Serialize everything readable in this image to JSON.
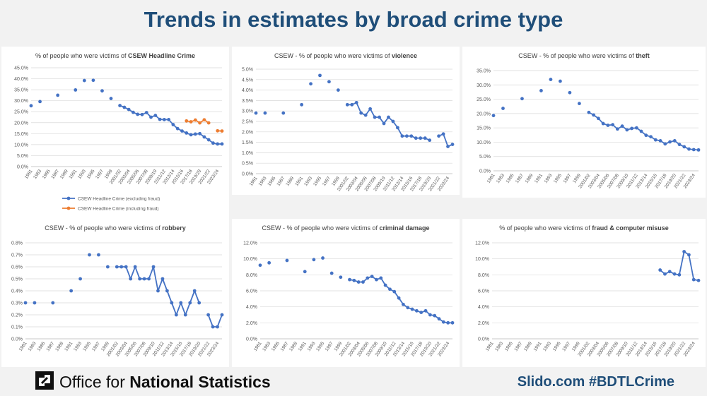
{
  "slide": {
    "title": "Trends in estimates by broad crime type"
  },
  "footer": {
    "org_light": "Office for ",
    "org_bold": "National Statistics",
    "slido": "Slido.com #BDTLCrime"
  },
  "colors": {
    "series_blue": "#4472c4",
    "series_orange": "#ed7d31",
    "title_blue": "#1f4e79",
    "grid": "#d9d9d9",
    "axis_text": "#595959"
  },
  "x_tick_labels": [
    "1981",
    "1983",
    "1985",
    "1987",
    "1989",
    "1991",
    "1993",
    "1995",
    "1997",
    "1999",
    "2001/02",
    "2003/04",
    "2005/06",
    "2007/08",
    "2009/10",
    "2011/12",
    "2013/14",
    "2015/16",
    "2017/18",
    "2019/20",
    "2021/22",
    "2023/24"
  ],
  "chart_data": [
    {
      "id": "headline",
      "type": "line",
      "title_prefix": "% of people who were victims of ",
      "title_bold": "CSEW Headline Crime",
      "ylim": [
        0,
        45
      ],
      "yticks": [
        "0.0%",
        "5.0%",
        "10.0%",
        "15.0%",
        "20.0%",
        "25.0%",
        "30.0%",
        "35.0%",
        "40.0%",
        "45.0%"
      ],
      "legend": [
        "CSEW Headline Crime (excluding fraud)",
        "CSEW Headline Crime (including fraud)"
      ],
      "series": [
        {
          "name": "CSEW Headline Crime (excluding fraud)",
          "color": "#4472c4",
          "points": [
            [
              1981,
              27.7
            ],
            [
              1983,
              29.6
            ],
            [
              1987,
              32.5
            ],
            [
              1991,
              34.9
            ],
            [
              1993,
              39.2
            ],
            [
              1995,
              39.3
            ],
            [
              1997,
              34.5
            ],
            [
              1999,
              31.0
            ],
            [
              2001,
              27.8
            ],
            [
              2002,
              27.0
            ],
            [
              2003,
              26.0
            ],
            [
              2004,
              24.7
            ],
            [
              2005,
              23.8
            ],
            [
              2006,
              23.7
            ],
            [
              2007,
              24.6
            ],
            [
              2008,
              22.5
            ],
            [
              2009,
              23.3
            ],
            [
              2010,
              21.5
            ],
            [
              2011,
              21.4
            ],
            [
              2012,
              21.4
            ],
            [
              2013,
              19.1
            ],
            [
              2014,
              17.3
            ],
            [
              2015,
              16.2
            ],
            [
              2016,
              15.3
            ],
            [
              2017,
              14.5
            ],
            [
              2018,
              14.8
            ],
            [
              2019,
              15.0
            ],
            [
              2020,
              13.5
            ],
            [
              2021,
              12.2
            ],
            [
              2022,
              10.7
            ],
            [
              2023,
              10.3
            ],
            [
              2024,
              10.3
            ]
          ]
        },
        {
          "name": "CSEW Headline Crime (including fraud)",
          "color": "#ed7d31",
          "points": [
            [
              2016,
              20.8
            ],
            [
              2017,
              20.4
            ],
            [
              2018,
              21.2
            ],
            [
              2019,
              19.9
            ],
            [
              2020,
              21.3
            ],
            [
              2021,
              19.9
            ],
            [
              2023,
              16.3
            ],
            [
              2024,
              16.2
            ]
          ]
        }
      ]
    },
    {
      "id": "violence",
      "type": "line",
      "title_prefix": "CSEW - % of people who were victims of ",
      "title_bold": "violence",
      "ylim": [
        0,
        5
      ],
      "yticks": [
        "0.0%",
        "0.5%",
        "1.0%",
        "1.5%",
        "2.0%",
        "2.5%",
        "3.0%",
        "3.5%",
        "4.0%",
        "4.5%",
        "5.0%"
      ],
      "series": [
        {
          "name": "violence",
          "color": "#4472c4",
          "points": [
            [
              1981,
              2.9
            ],
            [
              1983,
              2.9
            ],
            [
              1987,
              2.9
            ],
            [
              1991,
              3.3
            ],
            [
              1993,
              4.3
            ],
            [
              1995,
              4.7
            ],
            [
              1997,
              4.4
            ],
            [
              1999,
              4.0
            ],
            [
              2001,
              3.3
            ],
            [
              2002,
              3.3
            ],
            [
              2003,
              3.4
            ],
            [
              2004,
              2.9
            ],
            [
              2005,
              2.8
            ],
            [
              2006,
              3.1
            ],
            [
              2007,
              2.7
            ],
            [
              2008,
              2.7
            ],
            [
              2009,
              2.4
            ],
            [
              2010,
              2.7
            ],
            [
              2011,
              2.5
            ],
            [
              2012,
              2.2
            ],
            [
              2013,
              1.8
            ],
            [
              2014,
              1.8
            ],
            [
              2015,
              1.8
            ],
            [
              2016,
              1.7
            ],
            [
              2017,
              1.7
            ],
            [
              2018,
              1.7
            ],
            [
              2019,
              1.6
            ],
            [
              2021,
              1.8
            ],
            [
              2022,
              1.9
            ],
            [
              2023,
              1.3
            ],
            [
              2024,
              1.4
            ]
          ]
        }
      ]
    },
    {
      "id": "theft",
      "type": "line",
      "title_prefix": "CSEW - % of people who were victims of ",
      "title_bold": "theft",
      "ylim": [
        0,
        35
      ],
      "yticks": [
        "0.0%",
        "5.0%",
        "10.0%",
        "15.0%",
        "20.0%",
        "25.0%",
        "30.0%",
        "35.0%"
      ],
      "series": [
        {
          "name": "theft",
          "color": "#4472c4",
          "points": [
            [
              1981,
              19.3
            ],
            [
              1983,
              21.8
            ],
            [
              1987,
              25.2
            ],
            [
              1991,
              28.0
            ],
            [
              1993,
              31.9
            ],
            [
              1995,
              31.3
            ],
            [
              1997,
              27.3
            ],
            [
              1999,
              23.5
            ],
            [
              2001,
              20.4
            ],
            [
              2002,
              19.5
            ],
            [
              2003,
              18.3
            ],
            [
              2004,
              16.5
            ],
            [
              2005,
              15.9
            ],
            [
              2006,
              16.1
            ],
            [
              2007,
              14.6
            ],
            [
              2008,
              15.6
            ],
            [
              2009,
              14.3
            ],
            [
              2010,
              14.8
            ],
            [
              2011,
              15.0
            ],
            [
              2012,
              13.8
            ],
            [
              2013,
              12.4
            ],
            [
              2014,
              11.9
            ],
            [
              2015,
              10.8
            ],
            [
              2016,
              10.5
            ],
            [
              2017,
              9.4
            ],
            [
              2018,
              10.1
            ],
            [
              2019,
              10.5
            ],
            [
              2020,
              9.2
            ],
            [
              2021,
              8.4
            ],
            [
              2022,
              7.6
            ],
            [
              2023,
              7.4
            ],
            [
              2024,
              7.3
            ]
          ]
        }
      ]
    },
    {
      "id": "robbery",
      "type": "line",
      "title_prefix": "CSEW - % of people who were victims of ",
      "title_bold": "robbery",
      "ylim": [
        0,
        0.8
      ],
      "yticks": [
        "0.0%",
        "0.1%",
        "0.2%",
        "0.3%",
        "0.4%",
        "0.5%",
        "0.6%",
        "0.7%",
        "0.8%"
      ],
      "series": [
        {
          "name": "robbery",
          "color": "#4472c4",
          "points": [
            [
              1981,
              0.3
            ],
            [
              1983,
              0.3
            ],
            [
              1987,
              0.3
            ],
            [
              1991,
              0.4
            ],
            [
              1993,
              0.5
            ],
            [
              1995,
              0.7
            ],
            [
              1997,
              0.7
            ],
            [
              1999,
              0.6
            ],
            [
              2001,
              0.6
            ],
            [
              2002,
              0.6
            ],
            [
              2003,
              0.6
            ],
            [
              2004,
              0.5
            ],
            [
              2005,
              0.6
            ],
            [
              2006,
              0.5
            ],
            [
              2007,
              0.5
            ],
            [
              2008,
              0.5
            ],
            [
              2009,
              0.6
            ],
            [
              2010,
              0.4
            ],
            [
              2011,
              0.5
            ],
            [
              2012,
              0.4
            ],
            [
              2013,
              0.3
            ],
            [
              2014,
              0.2
            ],
            [
              2015,
              0.3
            ],
            [
              2016,
              0.2
            ],
            [
              2017,
              0.3
            ],
            [
              2018,
              0.4
            ],
            [
              2019,
              0.3
            ],
            [
              2021,
              0.2
            ],
            [
              2022,
              0.1
            ],
            [
              2023,
              0.1
            ],
            [
              2024,
              0.2
            ]
          ]
        }
      ]
    },
    {
      "id": "criminal-damage",
      "type": "line",
      "title_prefix": "CSEW - % of people who were victims of ",
      "title_bold": "criminal damage",
      "ylim": [
        0,
        12
      ],
      "yticks": [
        "0.0%",
        "2.0%",
        "4.0%",
        "6.0%",
        "8.0%",
        "10.0%",
        "12.0%"
      ],
      "series": [
        {
          "name": "criminal damage",
          "color": "#4472c4",
          "points": [
            [
              1981,
              9.2
            ],
            [
              1983,
              9.5
            ],
            [
              1987,
              9.8
            ],
            [
              1991,
              8.4
            ],
            [
              1993,
              9.9
            ],
            [
              1995,
              10.1
            ],
            [
              1997,
              8.2
            ],
            [
              1999,
              7.7
            ],
            [
              2001,
              7.4
            ],
            [
              2002,
              7.3
            ],
            [
              2003,
              7.1
            ],
            [
              2004,
              7.1
            ],
            [
              2005,
              7.6
            ],
            [
              2006,
              7.8
            ],
            [
              2007,
              7.4
            ],
            [
              2008,
              7.6
            ],
            [
              2009,
              6.7
            ],
            [
              2010,
              6.2
            ],
            [
              2011,
              5.9
            ],
            [
              2012,
              5.1
            ],
            [
              2013,
              4.3
            ],
            [
              2014,
              3.9
            ],
            [
              2015,
              3.7
            ],
            [
              2016,
              3.5
            ],
            [
              2017,
              3.3
            ],
            [
              2018,
              3.5
            ],
            [
              2019,
              3.0
            ],
            [
              2020,
              2.9
            ],
            [
              2021,
              2.5
            ],
            [
              2022,
              2.1
            ],
            [
              2023,
              2.0
            ],
            [
              2024,
              2.0
            ]
          ]
        }
      ]
    },
    {
      "id": "fraud",
      "type": "line",
      "title_prefix": "% of people who were victims of ",
      "title_bold": "fraud & computer misuse",
      "ylim": [
        0,
        12
      ],
      "yticks": [
        "0.0%",
        "2.0%",
        "4.0%",
        "6.0%",
        "8.0%",
        "10.0%",
        "12.0%"
      ],
      "series": [
        {
          "name": "fraud & computer misuse",
          "color": "#4472c4",
          "points": [
            [
              2016,
              8.6
            ],
            [
              2017,
              8.1
            ],
            [
              2018,
              8.4
            ],
            [
              2019,
              8.1
            ],
            [
              2020,
              8.0
            ],
            [
              2021,
              10.9
            ],
            [
              2022,
              10.5
            ],
            [
              2023,
              7.4
            ],
            [
              2024,
              7.3
            ]
          ]
        }
      ]
    }
  ]
}
